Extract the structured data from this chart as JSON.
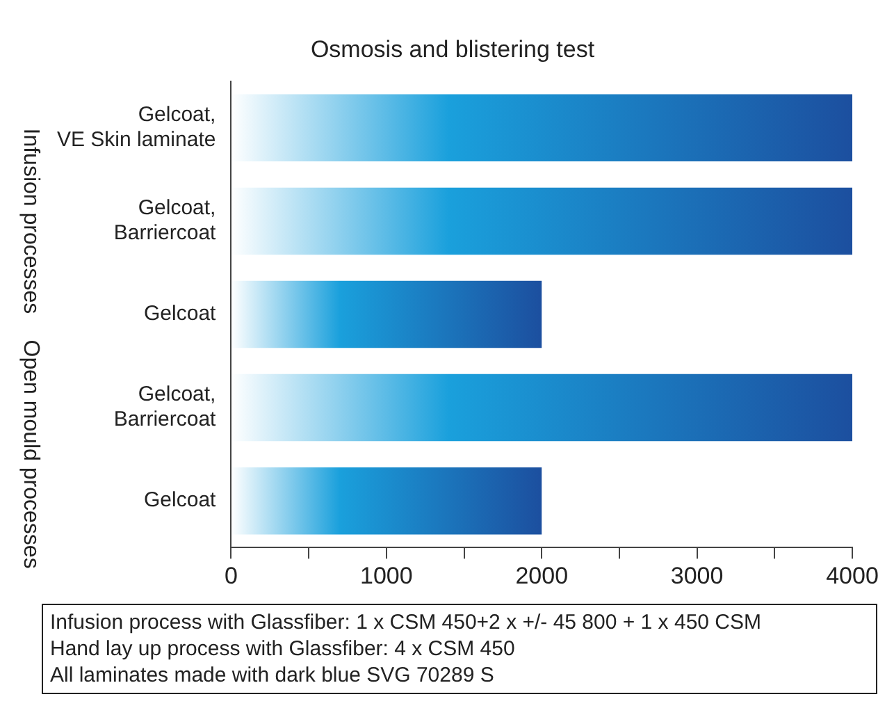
{
  "chart_data": {
    "type": "bar",
    "orientation": "horizontal",
    "title": "Osmosis and blistering test",
    "categories": [
      "Gelcoat, VE Skin laminate",
      "Gelcoat, Barriercoat",
      "Gelcoat",
      "Gelcoat, Barriercoat",
      "Gelcoat"
    ],
    "values": [
      4000,
      4000,
      2000,
      4000,
      2000
    ],
    "color": "#1c4f9f",
    "xlim": [
      0,
      4000
    ],
    "xticks": [
      0,
      {
        "value": 500,
        "label": null
      },
      1000,
      {
        "value": 1500,
        "label": null
      },
      2000,
      {
        "value": 2500,
        "label": null
      },
      3000,
      {
        "value": 3500,
        "label": null
      },
      4000
    ],
    "grid": false,
    "legend": false,
    "annotations": [
      "Infusion processes",
      "Open mould processes",
      "Infusion process with Glassfiber: 1 x CSM 450+2 x +/- 45 800 + 1 x 450 CSM",
      "Hand lay up process with Glassfiber: 4 x CSM 450",
      "All laminates made with dark blue SVG 70289 S"
    ]
  }
}
